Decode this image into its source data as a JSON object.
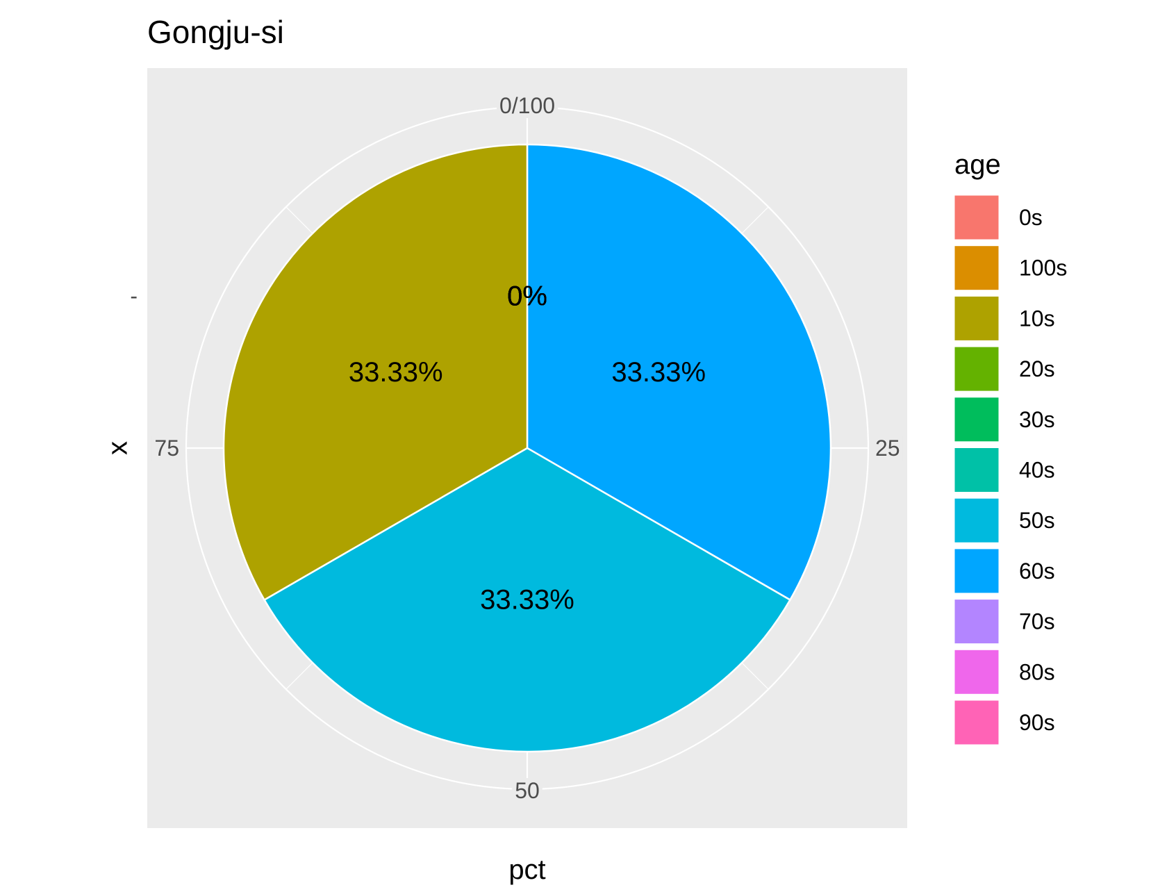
{
  "chart_data": {
    "type": "pie",
    "title": "Gongju-si",
    "xlabel": "pct",
    "ylabel": "x",
    "y_tick": "-",
    "angle_ticks": [
      {
        "value": 0,
        "label": "0/100"
      },
      {
        "value": 25,
        "label": "25"
      },
      {
        "value": 50,
        "label": "50"
      },
      {
        "value": 75,
        "label": "75"
      }
    ],
    "legend_title": "age",
    "legend_position": "right",
    "categories": [
      "0s",
      "100s",
      "10s",
      "20s",
      "30s",
      "40s",
      "50s",
      "60s",
      "70s",
      "80s",
      "90s"
    ],
    "colors": [
      "#F8766D",
      "#DB8E00",
      "#AEA200",
      "#64B200",
      "#00BD5C",
      "#00C1A7",
      "#00BADE",
      "#00A6FF",
      "#B385FF",
      "#EF67EB",
      "#FF63B6"
    ],
    "values": [
      0,
      0,
      33.33,
      0,
      0,
      0,
      33.33,
      33.33,
      0,
      0,
      0
    ],
    "labels": [
      "0%",
      "0%",
      "33.33%",
      "0%",
      "0%",
      "0%",
      "33.33%",
      "33.33%",
      "0%",
      "0%",
      "0%"
    ],
    "stack_order": [
      "60s",
      "50s",
      "10s",
      "0s",
      "100s",
      "20s",
      "30s",
      "40s",
      "70s",
      "80s",
      "90s"
    ],
    "grid": true
  }
}
